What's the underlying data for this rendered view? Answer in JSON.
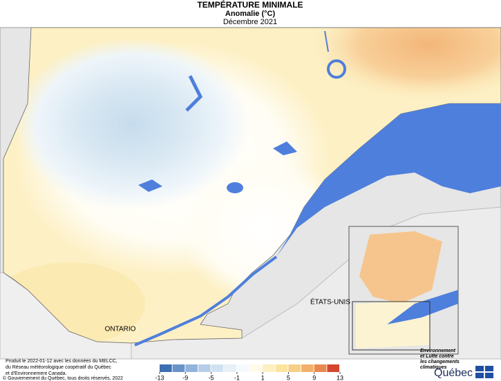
{
  "header": {
    "title": "TEMPÉRATURE MINIMALE",
    "subtitle": "Anomalie (°C)",
    "date": "Décembre 2021"
  },
  "labels": {
    "usa": "ÉTATS-UNIS",
    "ontario": "ONTARIO"
  },
  "footer": {
    "credits": [
      "Produit le 2022-01-12 avec les données du MELCC,",
      "du Réseau météorologique coopératif du Québec",
      "et d'Environnement Canada."
    ],
    "copyright": "© Gouvernement du Québec, tous droits réservés, 2022"
  },
  "legend": {
    "ticks": [
      -13,
      -9,
      -5,
      -1,
      1,
      5,
      9,
      13
    ],
    "colors": [
      "#3f6fb3",
      "#6a93c8",
      "#92b3da",
      "#b5cde6",
      "#d0e2f0",
      "#e6f0f7",
      "#f7fafd",
      "#fffbe8",
      "#fdf0c0",
      "#fbe3a0",
      "#f8cf86",
      "#f3b06c",
      "#e9894e",
      "#d4472e"
    ]
  },
  "logo": {
    "lines": [
      "Environnement",
      "et Lutte contre",
      "les changements",
      "climatiques"
    ],
    "name": "Québec"
  }
}
